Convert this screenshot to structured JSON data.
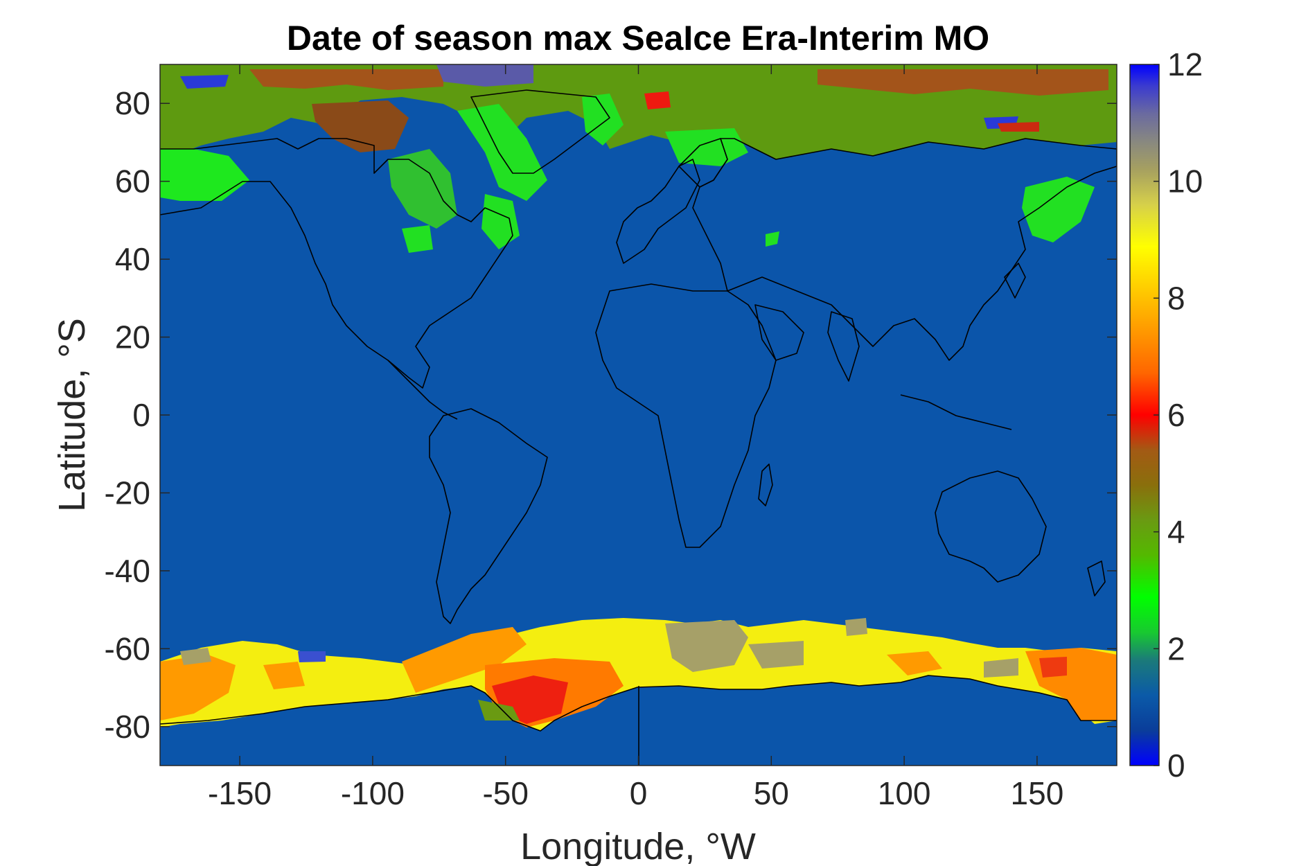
{
  "chart_data": {
    "type": "heatmap",
    "title": "Date of season max SeaIce Era-Interim MO",
    "xlabel": "Longitude, °W",
    "ylabel": "Latitude, °S",
    "xlim": [
      -180,
      180
    ],
    "ylim": [
      -90,
      90
    ],
    "x_ticks": [
      -150,
      -100,
      -50,
      0,
      50,
      100,
      150
    ],
    "x_tick_labels": [
      "-150",
      "-100",
      "-50",
      "0",
      "50",
      "100",
      "150"
    ],
    "y_ticks": [
      80,
      60,
      40,
      20,
      0,
      -20,
      -40,
      -60,
      -80
    ],
    "y_tick_labels": [
      "80",
      "60",
      "40",
      "20",
      "0",
      "-20",
      "-40",
      "-60",
      "-80"
    ],
    "colorbar": {
      "min": 0,
      "max": 12,
      "ticks": [
        0,
        2,
        4,
        6,
        8,
        10,
        12
      ],
      "tick_labels": [
        "0",
        "2",
        "4",
        "6",
        "8",
        "10",
        "12"
      ],
      "colormap": [
        "#0000ff",
        "#0a3d9a",
        "#0b5aa8",
        "#1b7a7a",
        "#18c930",
        "#00ff00",
        "#54b900",
        "#6a9a12",
        "#8a6f0c",
        "#a35a14",
        "#cc2a10",
        "#ff0000",
        "#ff6600",
        "#ff9900",
        "#ffcc00",
        "#ffff00",
        "#e2e23a",
        "#a6a060",
        "#888880",
        "#6a6aa0",
        "#3a3ad0",
        "#0000ff"
      ]
    },
    "background_value": 1,
    "regions": [
      {
        "area": "Arctic Ocean / Canadian Archipelago",
        "value_range": [
          3,
          5
        ]
      },
      {
        "area": "Hudson Bay / Baffin Bay / Greenland coast",
        "value_range": [
          2.5,
          3.5
        ]
      },
      {
        "area": "Sea of Okhotsk",
        "value_range": [
          2.5,
          3.5
        ]
      },
      {
        "area": "Southern Ocean sea ice ring",
        "value_range": [
          7,
          10
        ]
      },
      {
        "area": "Weddell Sea interior",
        "value_range": [
          4,
          7
        ]
      }
    ],
    "grid": false,
    "colors": {
      "ocean": "#0b55aa",
      "coastline": "#000000",
      "axes": "#262626"
    }
  }
}
